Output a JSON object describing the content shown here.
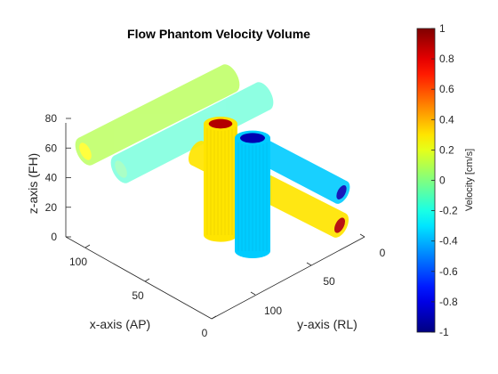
{
  "chart_data": {
    "type": "scatter3d",
    "title": "Flow Phantom Velocity Volume",
    "xlabel": "x-axis (AP)",
    "ylabel": "y-axis (RL)",
    "zlabel": "z-axis (FH)",
    "xticks": [
      0,
      50,
      100
    ],
    "yticks": [
      0,
      50,
      100
    ],
    "zticks": [
      0,
      20,
      40,
      60,
      80
    ],
    "xlim": [
      0,
      130
    ],
    "ylim": [
      0,
      130
    ],
    "zlim": [
      0,
      80
    ],
    "colorbar": {
      "label": "Velocity [cm/s]",
      "colormap": "jet",
      "clim": [
        -1,
        1
      ],
      "ticks": [
        "1",
        "0.8",
        "0.6",
        "0.4",
        "0.2",
        "0",
        "-0.2",
        "-0.4",
        "-0.6",
        "-0.8",
        "-1"
      ]
    },
    "series": [
      {
        "shape": "horizontal tube",
        "velocity": 0.1,
        "endcap_velocity": 0.25
      },
      {
        "shape": "horizontal tube",
        "velocity": -0.15,
        "endcap_velocity": -0.05
      },
      {
        "shape": "horizontal tube",
        "velocity": -0.35,
        "endcap_velocity": -0.9
      },
      {
        "shape": "horizontal tube",
        "velocity": 0.3,
        "endcap_velocity": 0.9
      },
      {
        "shape": "vertical tube",
        "velocity": 0.3,
        "endcap_velocity": 0.9
      },
      {
        "shape": "vertical tube",
        "velocity": -0.35,
        "endcap_velocity": -0.9
      }
    ]
  }
}
